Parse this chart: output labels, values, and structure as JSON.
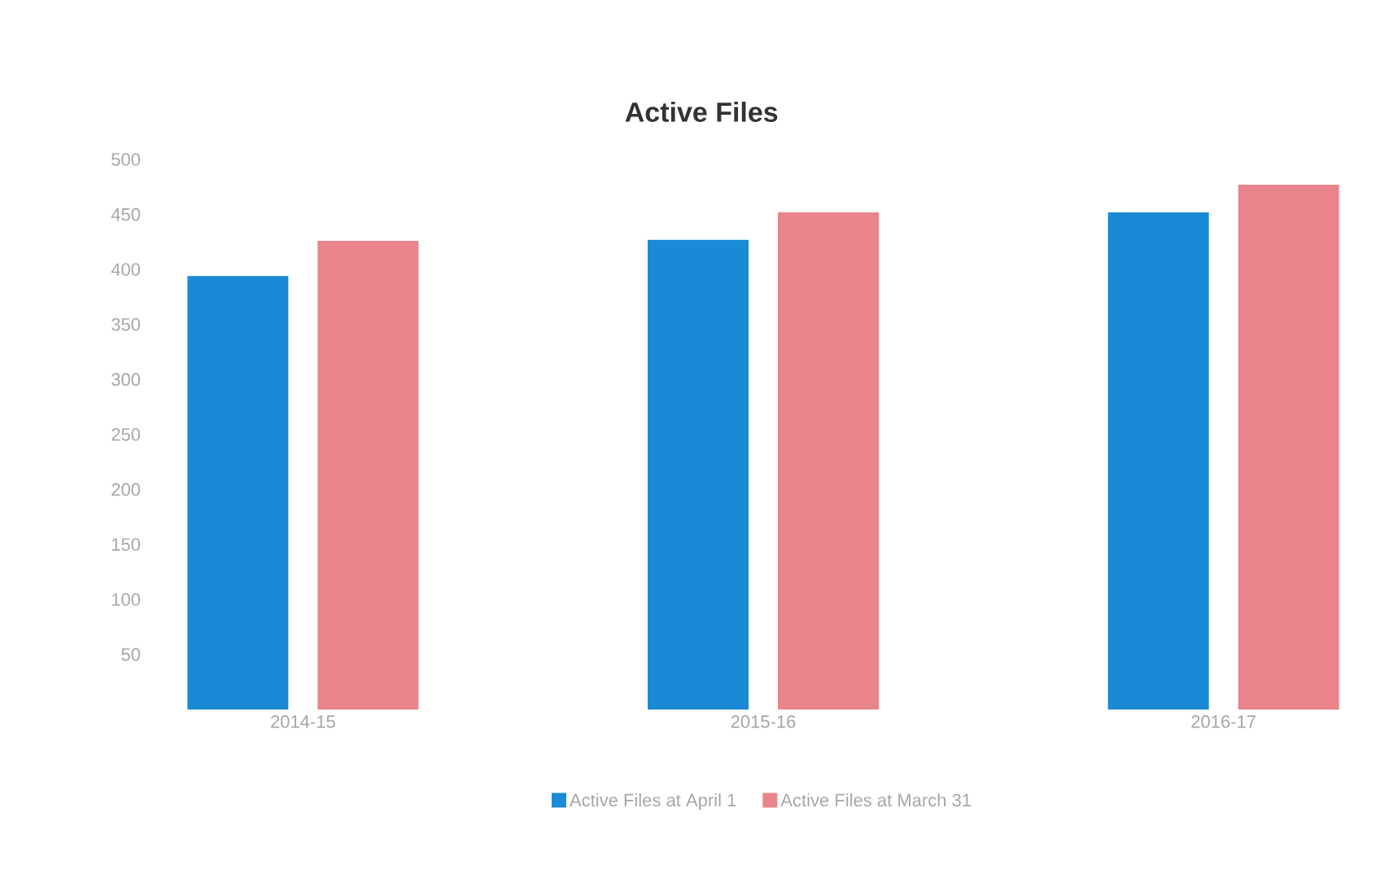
{
  "chart_data": {
    "type": "bar",
    "title": "Active Files",
    "categories": [
      "2014-15",
      "2015-16",
      "2016-17"
    ],
    "series": [
      {
        "name": "Active Files at April 1",
        "color": "#1a8ad4",
        "values": [
          394,
          427,
          452
        ]
      },
      {
        "name": "Active Files at March 31",
        "color": "#e8848a",
        "values": [
          426,
          452,
          477
        ]
      }
    ],
    "ylim": [
      0,
      500
    ],
    "yticks": [
      50,
      100,
      150,
      200,
      250,
      300,
      350,
      400,
      450,
      500
    ],
    "legend": "bottom"
  }
}
